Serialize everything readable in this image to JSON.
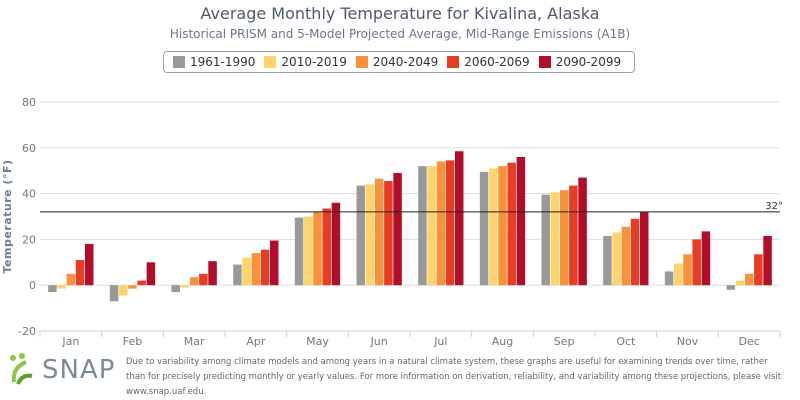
{
  "title": "Average Monthly Temperature for Kivalina, Alaska",
  "subtitle": "Historical PRISM and 5-Model Projected Average, Mid-Range Emissions (A1B)",
  "legend": [
    {
      "label": "1961-1990",
      "color": "#999999"
    },
    {
      "label": "2010-2019",
      "color": "#fdd36b"
    },
    {
      "label": "2040-2049",
      "color": "#f7923a"
    },
    {
      "label": "2060-2069",
      "color": "#e83c23"
    },
    {
      "label": "2090-2099",
      "color": "#b30d2a"
    }
  ],
  "footer": "Due to variability among climate models and among years in a natural climate system, these graphs are useful for examining trends over time, rather than for precisely predicting monthly or yearly values. For more information on derivation, reliability, and variability among these projections, please visit www.snap.uaf.edu.",
  "logo_text": "SNAP",
  "chart_data": {
    "type": "bar",
    "categories": [
      "Jan",
      "Feb",
      "Mar",
      "Apr",
      "May",
      "Jun",
      "Jul",
      "Aug",
      "Sep",
      "Oct",
      "Nov",
      "Dec"
    ],
    "series": [
      {
        "name": "1961-1990",
        "color": "#999999",
        "values": [
          -3,
          -7,
          -3,
          9,
          29.5,
          43.5,
          52,
          49.5,
          39.5,
          21.5,
          6,
          -2
        ]
      },
      {
        "name": "2010-2019",
        "color": "#fdd36b",
        "values": [
          -1.5,
          -4.5,
          -1,
          12,
          30,
          44,
          52,
          51,
          40.5,
          23,
          9.5,
          2
        ]
      },
      {
        "name": "2040-2049",
        "color": "#f7923a",
        "values": [
          5,
          -1.5,
          3.5,
          14,
          32,
          46.5,
          54,
          52,
          41.5,
          25.5,
          13.5,
          5
        ]
      },
      {
        "name": "2060-2069",
        "color": "#e83c23",
        "values": [
          11,
          2,
          5,
          15.5,
          33.5,
          45.5,
          54.5,
          53.5,
          43.5,
          29,
          20,
          13.5
        ]
      },
      {
        "name": "2090-2099",
        "color": "#b30d2a",
        "values": [
          18,
          10,
          10.5,
          19.5,
          36,
          49,
          58.5,
          56,
          47,
          32,
          23.5,
          21.5
        ]
      }
    ],
    "title": "Average Monthly Temperature for Kivalina, Alaska",
    "ylabel": "Temperature (°F)",
    "ylim": [
      -20,
      80
    ],
    "yticks": [
      -20,
      0,
      20,
      40,
      60,
      80
    ],
    "reference_line": {
      "value": 32,
      "label": "32°"
    },
    "grid": true,
    "legend_position": "top"
  }
}
